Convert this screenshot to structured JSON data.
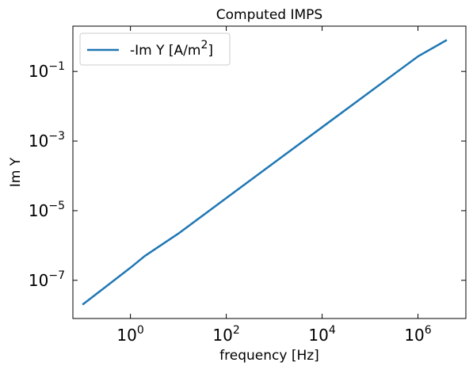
{
  "chart_data": {
    "type": "line",
    "title": "Computed IMPS",
    "xlabel": "frequency [Hz]",
    "ylabel": "Im Y",
    "x_scale": "log",
    "y_scale": "log",
    "xlim": [
      0.063,
      10000000.0
    ],
    "ylim": [
      8e-09,
      2.0
    ],
    "x_ticks": [
      {
        "value": 1,
        "base": "10",
        "exp": "0"
      },
      {
        "value": 100,
        "base": "10",
        "exp": "2"
      },
      {
        "value": 10000,
        "base": "10",
        "exp": "4"
      },
      {
        "value": 1000000,
        "base": "10",
        "exp": "6"
      }
    ],
    "y_ticks": [
      {
        "value": 1e-07,
        "base": "10",
        "exp": "−7"
      },
      {
        "value": 1e-05,
        "base": "10",
        "exp": "−5"
      },
      {
        "value": 0.001,
        "base": "10",
        "exp": "−3"
      },
      {
        "value": 0.1,
        "base": "10",
        "exp": "−1"
      }
    ],
    "grid": false,
    "legend": {
      "placement": "top-left",
      "text_main": "-Im Y [A/m",
      "text_sup": "2",
      "text_close": "]"
    },
    "series": [
      {
        "name": "-Im Y [A/m2]",
        "color": "#1f77b4",
        "x": [
          0.1,
          1,
          2,
          10,
          100,
          1000,
          10000,
          100000,
          1000000,
          4000000
        ],
        "y": [
          2e-08,
          2.3e-07,
          5e-07,
          2.2e-06,
          2.3e-05,
          0.00024,
          0.0025,
          0.026,
          0.27,
          0.8
        ]
      }
    ]
  }
}
